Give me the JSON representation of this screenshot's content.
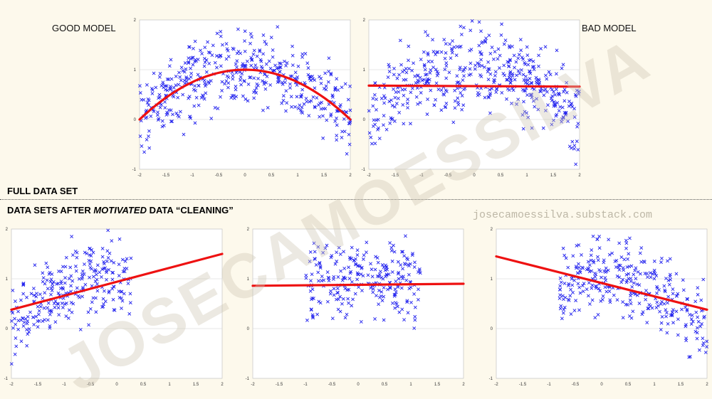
{
  "labels": {
    "good_model": "GOOD MODEL",
    "bad_model": "BAD MODEL",
    "full_data_set": "FULL DATA SET",
    "after_prefix": "DATA SETS AFTER ",
    "after_italic": "MOTIVATED",
    "after_suffix": " DATA “CLEANING”",
    "url": "josecamoessilva.substack.com",
    "watermark": "JOSECAMOESSILVA"
  },
  "colors": {
    "points": "#2222ee",
    "fit": "#ee1111",
    "background": "#fdf9ec",
    "plot_bg": "#ffffff",
    "grid": "#d0d0d0"
  },
  "chart_data": [
    {
      "id": "good",
      "type": "scatter",
      "marker": "x",
      "fit": "quadratic",
      "fit_points": {
        "x": [
          -2,
          -1.5,
          -1,
          -0.5,
          0,
          0.5,
          1,
          1.5,
          2
        ],
        "y": [
          0,
          0.44,
          0.75,
          0.94,
          1.0,
          0.94,
          0.75,
          0.44,
          0
        ]
      },
      "xlim": [
        -2,
        2
      ],
      "ylim": [
        -1,
        2
      ],
      "xticks": [
        "-2",
        "-1.5",
        "-1",
        "-0.5",
        "0",
        "0.5",
        "1",
        "1.5",
        "2"
      ],
      "yticks": [
        "-1",
        "0",
        "1",
        "2"
      ],
      "points_from": [
        -2,
        2
      ],
      "grid": true
    },
    {
      "id": "bad",
      "type": "scatter",
      "marker": "x",
      "fit": "linear",
      "fit_points": {
        "x": [
          -2,
          2
        ],
        "y": [
          0.68,
          0.66
        ]
      },
      "xlim": [
        -2,
        2
      ],
      "ylim": [
        -1,
        2
      ],
      "xticks": [
        "-2",
        "-1.5",
        "-1",
        "-0.5",
        "0",
        "0.5",
        "1",
        "1.5",
        "2"
      ],
      "yticks": [
        "-1",
        "0",
        "1",
        "2"
      ],
      "points_from": [
        -2,
        2
      ],
      "grid": true
    },
    {
      "id": "clean-up",
      "type": "scatter",
      "marker": "x",
      "fit": "linear",
      "fit_points": {
        "x": [
          -2,
          2
        ],
        "y": [
          0.38,
          1.5
        ]
      },
      "xlim": [
        -2,
        2
      ],
      "ylim": [
        -1,
        2
      ],
      "xticks": [
        "-2",
        "-1.5",
        "-1",
        "-0.5",
        "0",
        "0.5",
        "1",
        "1.5",
        "2"
      ],
      "yticks": [
        "-1",
        "0",
        "1",
        "2"
      ],
      "points_from": [
        -2,
        0.3
      ],
      "grid": true
    },
    {
      "id": "clean-flat",
      "type": "scatter",
      "marker": "x",
      "fit": "linear",
      "fit_points": {
        "x": [
          -2,
          2
        ],
        "y": [
          0.86,
          0.9
        ]
      },
      "xlim": [
        -2,
        2
      ],
      "ylim": [
        -1,
        2
      ],
      "xticks": [
        "-2",
        "-1.5",
        "-1",
        "-0.5",
        "0",
        "0.5",
        "1",
        "1.5",
        "2"
      ],
      "yticks": [
        "-1",
        "0",
        "1",
        "2"
      ],
      "points_from": [
        -1.0,
        1.2
      ],
      "grid": true
    },
    {
      "id": "clean-down",
      "type": "scatter",
      "marker": "x",
      "fit": "linear",
      "fit_points": {
        "x": [
          -2,
          2
        ],
        "y": [
          1.45,
          0.38
        ]
      },
      "xlim": [
        -2,
        2
      ],
      "ylim": [
        -1,
        2
      ],
      "xticks": [
        "-2",
        "-1.5",
        "-1",
        "-0.5",
        "0",
        "0.5",
        "1",
        "1.5",
        "2"
      ],
      "yticks": [
        "-1",
        "0",
        "1",
        "2"
      ],
      "points_from": [
        -0.8,
        2
      ],
      "grid": true
    }
  ]
}
